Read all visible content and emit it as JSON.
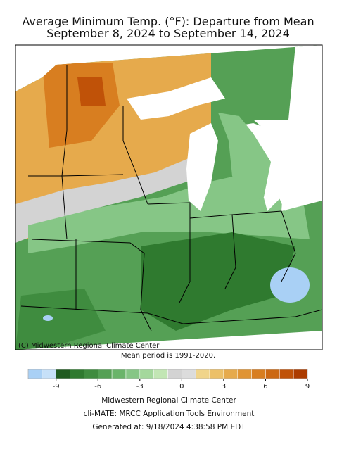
{
  "title": [
    "Average Minimum Temp. (°F): Departure from Mean",
    "September 8, 2024 to September 14, 2024"
  ],
  "map_credit": "(C) Midwestern Regional Climate Center",
  "mean_period": "Mean period is 1991-2020.",
  "colorbar": {
    "range": [
      -11,
      9
    ],
    "ticks": [
      -9,
      -6,
      -3,
      0,
      3,
      6,
      9
    ],
    "colors": [
      "#a9d0f5",
      "#c6e0f8",
      "#1f5a1f",
      "#2f7a2f",
      "#3f8c3f",
      "#55a055",
      "#6ab46a",
      "#86c686",
      "#a4d89c",
      "#c2e6b4",
      "#d3d3d3",
      "#dcdcdc",
      "#f0d48a",
      "#ecc068",
      "#e6aa4c",
      "#e09434",
      "#d87e20",
      "#cc6812",
      "#c05208",
      "#ac3c00"
    ]
  },
  "footer": [
    "Midwestern Regional Climate Center",
    "cli-MATE: MRCC Application Tools Environment",
    "Generated at: 9/18/2024 4:38:58 PM EDT"
  ]
}
